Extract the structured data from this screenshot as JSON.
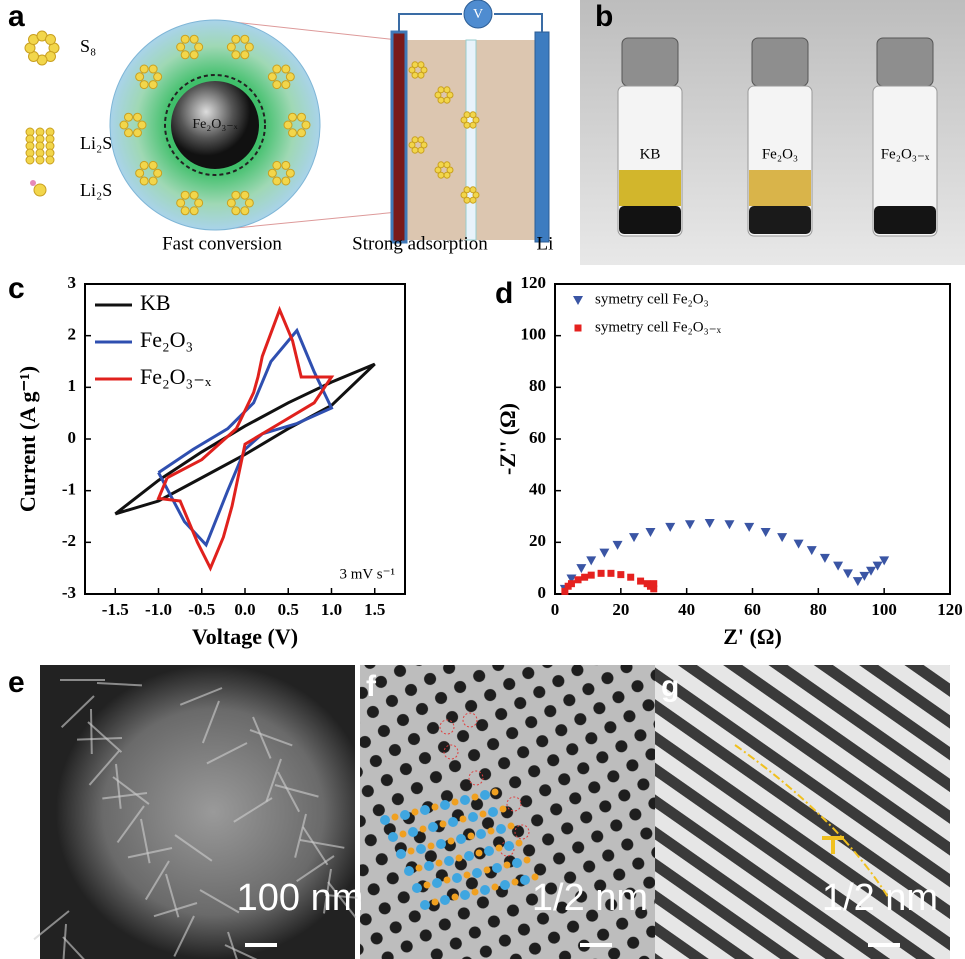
{
  "panel_labels": [
    "a",
    "b",
    "c",
    "d",
    "e",
    "f",
    "g"
  ],
  "diagram_a": {
    "legend": [
      "S₈",
      "Li₂Sₙ",
      "Li₂S"
    ],
    "core_label": "Fe₂O₃₋ₓ",
    "voltmeter": "V",
    "captions": [
      "Fast conversion",
      "Strong adsorption",
      "Li"
    ]
  },
  "photo_b": {
    "vial_labels": [
      "KB",
      "Fe₂O₃",
      "Fe₂O₃₋ₓ"
    ]
  },
  "micrographs": {
    "scale_bars": [
      "100 nm",
      "1/2 nm",
      "1/2 nm"
    ]
  },
  "chart_data": [
    {
      "type": "line",
      "xlabel": "Voltage (V)",
      "ylabel": "Current (A g⁻¹)",
      "annotation": "3 mV s⁻¹",
      "xlim": [
        -1.85,
        1.85
      ],
      "xticks": [
        -1.5,
        {
          "value": -1,
          "label": "-1.0"
        },
        -0.5,
        {
          "value": 0,
          "label": "0.0"
        },
        0.5,
        {
          "value": 1,
          "label": "1.0"
        },
        1.5
      ],
      "ylim": [
        -3,
        3
      ],
      "yticks": [
        -3,
        -2,
        -1,
        0,
        1,
        2,
        3
      ],
      "legend": "upper left",
      "series": [
        {
          "name": "KB",
          "color": "#111111",
          "x": [
            -1.5,
            -1.0,
            -0.5,
            0,
            0.5,
            1.0,
            1.5,
            1.0,
            0.5,
            0,
            -0.5,
            -1.0,
            -1.5
          ],
          "values": [
            -1.45,
            -1.2,
            -0.75,
            -0.3,
            0.2,
            0.65,
            1.45,
            1.1,
            0.7,
            0.25,
            -0.25,
            -0.8,
            -1.45
          ]
        },
        {
          "name": "Fe₂O₃",
          "color": "#2f4fb0",
          "x": [
            -1.0,
            -0.6,
            -0.2,
            0.1,
            0.3,
            0.6,
            0.8,
            1.0,
            0.6,
            0.2,
            0,
            -0.2,
            -0.45,
            -0.7,
            -1.0
          ],
          "values": [
            -0.65,
            -0.2,
            0.2,
            0.7,
            1.5,
            2.1,
            1.3,
            0.6,
            0.3,
            0.1,
            -0.2,
            -1.0,
            -2.05,
            -1.6,
            -0.65
          ]
        },
        {
          "name": "Fe₂O₃₋ₓ",
          "color": "#e0211d",
          "x": [
            -0.9,
            -0.5,
            -0.1,
            0.1,
            0.15,
            0.2,
            0.4,
            0.55,
            0.65,
            1.0,
            0.8,
            0.4,
            0,
            -0.1,
            -0.15,
            -0.25,
            -0.4,
            -0.55,
            -0.75,
            -1.0,
            -0.9
          ],
          "values": [
            -0.75,
            -0.4,
            0.2,
            0.9,
            1.2,
            1.6,
            2.5,
            1.9,
            1.2,
            1.2,
            0.7,
            0.3,
            -0.1,
            -0.9,
            -1.3,
            -1.9,
            -2.5,
            -2.0,
            -1.2,
            -1.15,
            -0.75
          ]
        }
      ]
    },
    {
      "type": "scatter",
      "xlabel": "Z' (Ω)",
      "ylabel": "-Z'' (Ω)",
      "legend": "upper left",
      "xlim": [
        0,
        120
      ],
      "xticks": [
        0,
        20,
        40,
        60,
        80,
        100,
        120
      ],
      "ylim": [
        0,
        120
      ],
      "yticks": [
        0,
        20,
        40,
        60,
        80,
        100,
        120
      ],
      "series": [
        {
          "name": "symetry cell Fe₂O₃",
          "color": "#3a55a4",
          "marker": "triangle-down",
          "x": [
            3,
            5,
            8,
            11,
            15,
            19,
            24,
            29,
            35,
            41,
            47,
            53,
            59,
            64,
            69,
            74,
            78,
            82,
            86,
            89,
            92,
            94,
            96,
            98,
            100
          ],
          "values": [
            2,
            6,
            10,
            13,
            16,
            19,
            22,
            24,
            26,
            27,
            27.5,
            27,
            26,
            24,
            22,
            19.5,
            17,
            14,
            11,
            8,
            5,
            7,
            9,
            11,
            13
          ]
        },
        {
          "name": "symetry cell Fe₂O₃₋ₓ",
          "color": "#e5211f",
          "marker": "square",
          "x": [
            3,
            4,
            5,
            7,
            9,
            11,
            14,
            17,
            20,
            23,
            26,
            28,
            29,
            30,
            30
          ],
          "values": [
            1,
            3,
            4,
            5.5,
            6.5,
            7.3,
            8,
            8,
            7.5,
            6.5,
            5,
            4,
            3,
            2,
            4
          ]
        }
      ]
    }
  ]
}
